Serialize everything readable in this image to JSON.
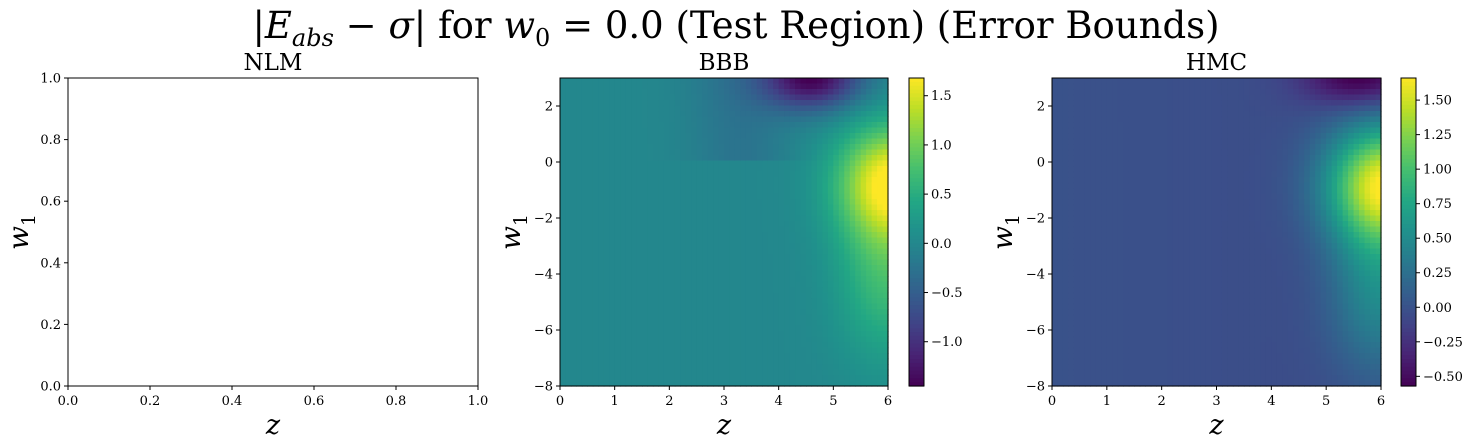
{
  "suptitle": {
    "abs_open": "|",
    "E": "E",
    "E_sub": "abs",
    "minus": " − ",
    "sigma": "σ",
    "abs_close": "|",
    "for_text": " for ",
    "w": "w",
    "w_sub": "0",
    "rest": " = 0.0 (Test Region) (Error Bounds)"
  },
  "chart_data": [
    {
      "type": "heatmap",
      "title": "NLM",
      "xlabel": "z",
      "ylabel": "w",
      "ylabel_sub": "1",
      "xlim": [
        0,
        1
      ],
      "ylim": [
        0,
        1
      ],
      "xticks": [
        "0.0",
        "0.2",
        "0.4",
        "0.6",
        "0.8",
        "1.0"
      ],
      "yticks": [
        "0.0",
        "0.2",
        "0.4",
        "0.6",
        "0.8",
        "1.0"
      ],
      "values": [],
      "colorbar": null
    },
    {
      "type": "heatmap",
      "title": "BBB",
      "xlabel": "z",
      "ylabel": "w",
      "ylabel_sub": "1",
      "xlim": [
        0,
        6
      ],
      "ylim": [
        -8,
        3
      ],
      "xticks": [
        "0",
        "1",
        "2",
        "3",
        "4",
        "5",
        "6"
      ],
      "yticks": [
        "2",
        "0",
        "−2",
        "−4",
        "−6",
        "−8"
      ],
      "colormap": "viridis",
      "value_range": [
        -1.45,
        1.68
      ],
      "field": {
        "description": "error surface over z in [0,6], w1 in [-8,3]",
        "background": 0.0,
        "peak": {
          "z": 5.9,
          "w1": -0.7,
          "value": 1.68
        },
        "trough": {
          "z": 4.6,
          "w1": 3.0,
          "value": -1.45
        }
      },
      "colorbar": {
        "ticks": [
          "1.5",
          "1.0",
          "0.5",
          "0.0",
          "−0.5",
          "−1.0"
        ],
        "tick_values": [
          1.5,
          1.0,
          0.5,
          0.0,
          -0.5,
          -1.0
        ]
      }
    },
    {
      "type": "heatmap",
      "title": "HMC",
      "xlabel": "z",
      "ylabel": "w",
      "ylabel_sub": "1",
      "xlim": [
        0,
        6
      ],
      "ylim": [
        -8,
        3
      ],
      "xticks": [
        "0",
        "1",
        "2",
        "3",
        "4",
        "5",
        "6"
      ],
      "yticks": [
        "2",
        "0",
        "−2",
        "−4",
        "−6",
        "−8"
      ],
      "colormap": "viridis",
      "value_range": [
        -0.57,
        1.66
      ],
      "field": {
        "description": "error surface over z in [0,6], w1 in [-8,3]",
        "background": 0.0,
        "peak": {
          "z": 5.9,
          "w1": -0.8,
          "value": 1.66
        },
        "trough": {
          "z": 5.6,
          "w1": 3.0,
          "value": -0.57
        }
      },
      "colorbar": {
        "ticks": [
          "1.50",
          "1.25",
          "1.00",
          "0.75",
          "0.50",
          "0.25",
          "0.00",
          "−0.25",
          "−0.50"
        ],
        "tick_values": [
          1.5,
          1.25,
          1.0,
          0.75,
          0.5,
          0.25,
          0.0,
          -0.25,
          -0.5
        ]
      }
    }
  ]
}
